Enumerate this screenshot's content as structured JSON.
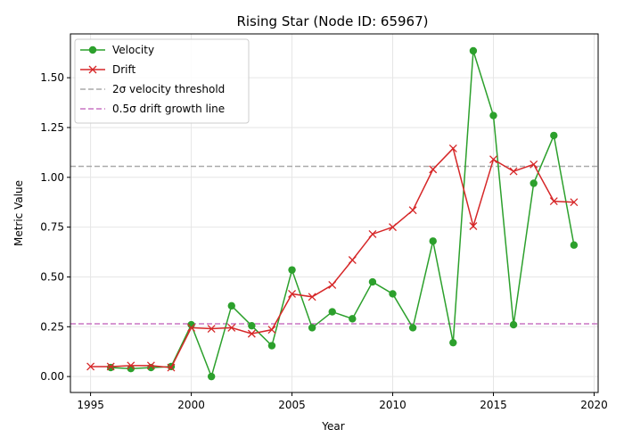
{
  "chart_data": {
    "type": "line",
    "title": "Rising Star (Node ID: 65967)",
    "xlabel": "Year",
    "ylabel": "Metric Value",
    "xlim": [
      1994.0,
      2020.2
    ],
    "ylim": [
      -0.08,
      1.72
    ],
    "xticks": [
      1995,
      2000,
      2005,
      2010,
      2015,
      2020
    ],
    "xtick_labels": [
      "1995",
      "2000",
      "2005",
      "2010",
      "2015",
      "2020"
    ],
    "yticks": [
      0.0,
      0.25,
      0.5,
      0.75,
      1.0,
      1.25,
      1.5
    ],
    "ytick_labels": [
      "0.00",
      "0.25",
      "0.50",
      "0.75",
      "1.00",
      "1.25",
      "1.50"
    ],
    "grid": true,
    "legend_position": "top-left",
    "series": [
      {
        "name": "Velocity",
        "color": "#2ca02c",
        "marker": "circle",
        "x": [
          1996,
          1997,
          1998,
          1999,
          2000,
          2001,
          2002,
          2003,
          2004,
          2005,
          2006,
          2007,
          2008,
          2009,
          2010,
          2011,
          2012,
          2013,
          2014,
          2015,
          2016,
          2017,
          2018,
          2019
        ],
        "y": [
          0.045,
          0.04,
          0.045,
          0.05,
          0.26,
          0.0,
          0.355,
          0.255,
          0.155,
          0.535,
          0.245,
          0.325,
          0.29,
          0.475,
          0.415,
          0.245,
          0.68,
          0.17,
          1.635,
          1.31,
          0.26,
          0.97,
          1.21,
          0.66
        ]
      },
      {
        "name": "Drift",
        "color": "#d62728",
        "marker": "x",
        "x": [
          1995,
          1996,
          1997,
          1998,
          1999,
          2000,
          2001,
          2002,
          2003,
          2004,
          2005,
          2006,
          2007,
          2008,
          2009,
          2010,
          2011,
          2012,
          2013,
          2014,
          2015,
          2016,
          2017,
          2018,
          2019
        ],
        "y": [
          0.05,
          0.05,
          0.055,
          0.055,
          0.045,
          0.245,
          0.24,
          0.245,
          0.215,
          0.235,
          0.415,
          0.4,
          0.46,
          0.585,
          0.715,
          0.75,
          0.835,
          1.04,
          1.145,
          0.755,
          1.09,
          1.03,
          1.065,
          0.88,
          0.875
        ]
      }
    ],
    "reference_lines": [
      {
        "name": "2σ velocity threshold",
        "y": 1.055,
        "color": "#aaaaaa",
        "style": "dashed"
      },
      {
        "name": "0.5σ drift growth line",
        "y": 0.265,
        "color": "#c875c4",
        "style": "dashed"
      }
    ]
  }
}
